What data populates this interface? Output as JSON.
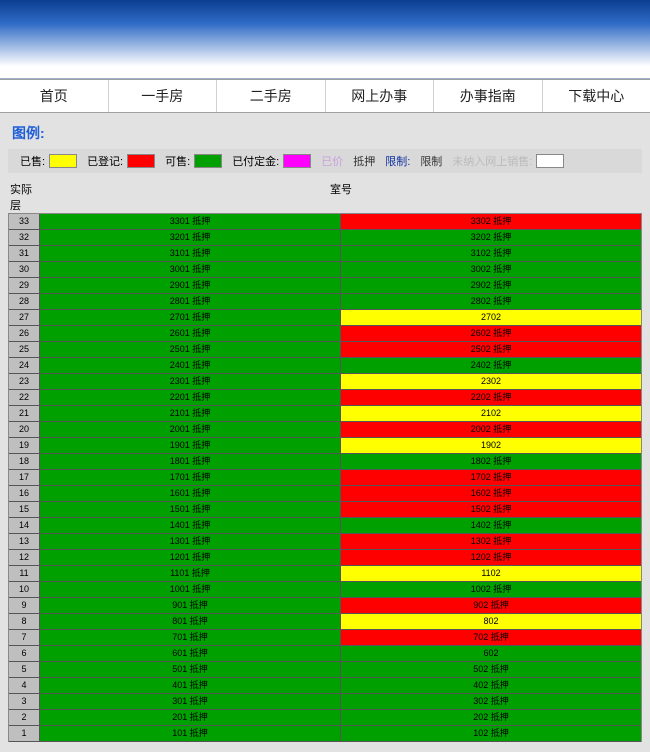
{
  "nav": {
    "items": [
      "首页",
      "一手房",
      "二手房",
      "网上办事",
      "办事指南",
      "下载中心"
    ]
  },
  "legend": {
    "title": "图例:",
    "items": [
      {
        "label": "已售:",
        "color": "#ffff00"
      },
      {
        "label": "已登记:",
        "color": "#ff0000"
      },
      {
        "label": "可售:",
        "color": "#00a000"
      },
      {
        "label": "已付定金:",
        "color": "#ff00ff"
      },
      {
        "label": "已价",
        "color": null,
        "textcolor": "#c9a0dd"
      },
      {
        "label": "抵押",
        "color": null,
        "textcolor": "#333"
      },
      {
        "label": "限制:",
        "color": null,
        "textcolor": "#1030a0"
      },
      {
        "label": "限制",
        "color": null,
        "textcolor": "#333"
      },
      {
        "label": "未纳入网上销售:",
        "color": "#ffffff",
        "textcolor": "#bbb"
      }
    ]
  },
  "header": {
    "left": "实际层",
    "right": "室号"
  },
  "colors": {
    "g": "#00a000",
    "r": "#ff0000",
    "y": "#ffff00",
    "grey": "#bfbfbf"
  },
  "rows": [
    {
      "f": "33",
      "c": [
        {
          "t": "3301 抵押",
          "s": "g"
        },
        {
          "t": "3302 抵押",
          "s": "r"
        }
      ]
    },
    {
      "f": "32",
      "c": [
        {
          "t": "3201 抵押",
          "s": "g"
        },
        {
          "t": "3202 抵押",
          "s": "g"
        }
      ]
    },
    {
      "f": "31",
      "c": [
        {
          "t": "3101 抵押",
          "s": "g"
        },
        {
          "t": "3102 抵押",
          "s": "g"
        }
      ]
    },
    {
      "f": "30",
      "c": [
        {
          "t": "3001 抵押",
          "s": "g"
        },
        {
          "t": "3002 抵押",
          "s": "g"
        }
      ]
    },
    {
      "f": "29",
      "c": [
        {
          "t": "2901 抵押",
          "s": "g"
        },
        {
          "t": "2902 抵押",
          "s": "g"
        }
      ]
    },
    {
      "f": "28",
      "c": [
        {
          "t": "2801 抵押",
          "s": "g"
        },
        {
          "t": "2802 抵押",
          "s": "g"
        }
      ]
    },
    {
      "f": "27",
      "c": [
        {
          "t": "2701 抵押",
          "s": "g"
        },
        {
          "t": "2702",
          "s": "y"
        }
      ]
    },
    {
      "f": "26",
      "c": [
        {
          "t": "2601 抵押",
          "s": "g"
        },
        {
          "t": "2602 抵押",
          "s": "r"
        }
      ]
    },
    {
      "f": "25",
      "c": [
        {
          "t": "2501 抵押",
          "s": "g"
        },
        {
          "t": "2502 抵押",
          "s": "r"
        }
      ]
    },
    {
      "f": "24",
      "c": [
        {
          "t": "2401 抵押",
          "s": "g"
        },
        {
          "t": "2402 抵押",
          "s": "g"
        }
      ]
    },
    {
      "f": "23",
      "c": [
        {
          "t": "2301 抵押",
          "s": "g"
        },
        {
          "t": "2302",
          "s": "y"
        }
      ]
    },
    {
      "f": "22",
      "c": [
        {
          "t": "2201 抵押",
          "s": "g"
        },
        {
          "t": "2202 抵押",
          "s": "r"
        }
      ]
    },
    {
      "f": "21",
      "c": [
        {
          "t": "2101 抵押",
          "s": "g"
        },
        {
          "t": "2102",
          "s": "y"
        }
      ]
    },
    {
      "f": "20",
      "c": [
        {
          "t": "2001 抵押",
          "s": "g"
        },
        {
          "t": "2002 抵押",
          "s": "r"
        }
      ]
    },
    {
      "f": "19",
      "c": [
        {
          "t": "1901 抵押",
          "s": "g"
        },
        {
          "t": "1902",
          "s": "y"
        }
      ]
    },
    {
      "f": "18",
      "c": [
        {
          "t": "1801 抵押",
          "s": "g"
        },
        {
          "t": "1802 抵押",
          "s": "g"
        }
      ]
    },
    {
      "f": "17",
      "c": [
        {
          "t": "1701 抵押",
          "s": "g"
        },
        {
          "t": "1702 抵押",
          "s": "r"
        }
      ]
    },
    {
      "f": "16",
      "c": [
        {
          "t": "1601 抵押",
          "s": "g"
        },
        {
          "t": "1602 抵押",
          "s": "r"
        }
      ]
    },
    {
      "f": "15",
      "c": [
        {
          "t": "1501 抵押",
          "s": "g"
        },
        {
          "t": "1502 抵押",
          "s": "r"
        }
      ]
    },
    {
      "f": "14",
      "c": [
        {
          "t": "1401 抵押",
          "s": "g"
        },
        {
          "t": "1402 抵押",
          "s": "g"
        }
      ]
    },
    {
      "f": "13",
      "c": [
        {
          "t": "1301 抵押",
          "s": "g"
        },
        {
          "t": "1302 抵押",
          "s": "r"
        }
      ]
    },
    {
      "f": "12",
      "c": [
        {
          "t": "1201 抵押",
          "s": "g"
        },
        {
          "t": "1202 抵押",
          "s": "r"
        }
      ]
    },
    {
      "f": "11",
      "c": [
        {
          "t": "1101 抵押",
          "s": "g"
        },
        {
          "t": "1102",
          "s": "y"
        }
      ]
    },
    {
      "f": "10",
      "c": [
        {
          "t": "1001 抵押",
          "s": "g"
        },
        {
          "t": "1002 抵押",
          "s": "g"
        }
      ]
    },
    {
      "f": "9",
      "c": [
        {
          "t": "901 抵押",
          "s": "g"
        },
        {
          "t": "902 抵押",
          "s": "r"
        }
      ]
    },
    {
      "f": "8",
      "c": [
        {
          "t": "801 抵押",
          "s": "g"
        },
        {
          "t": "802",
          "s": "y"
        }
      ]
    },
    {
      "f": "7",
      "c": [
        {
          "t": "701 抵押",
          "s": "g"
        },
        {
          "t": "702 抵押",
          "s": "r"
        }
      ]
    },
    {
      "f": "6",
      "c": [
        {
          "t": "601 抵押",
          "s": "g"
        },
        {
          "t": "602",
          "s": "g"
        }
      ]
    },
    {
      "f": "5",
      "c": [
        {
          "t": "501 抵押",
          "s": "g"
        },
        {
          "t": "502 抵押",
          "s": "g"
        }
      ]
    },
    {
      "f": "4",
      "c": [
        {
          "t": "401 抵押",
          "s": "g"
        },
        {
          "t": "402 抵押",
          "s": "g"
        }
      ]
    },
    {
      "f": "3",
      "c": [
        {
          "t": "301 抵押",
          "s": "g"
        },
        {
          "t": "302 抵押",
          "s": "g"
        }
      ]
    },
    {
      "f": "2",
      "c": [
        {
          "t": "201 抵押",
          "s": "g"
        },
        {
          "t": "202 抵押",
          "s": "g"
        }
      ]
    },
    {
      "f": "1",
      "c": [
        {
          "t": "101 抵押",
          "s": "g"
        },
        {
          "t": "102 抵押",
          "s": "g"
        }
      ]
    }
  ]
}
